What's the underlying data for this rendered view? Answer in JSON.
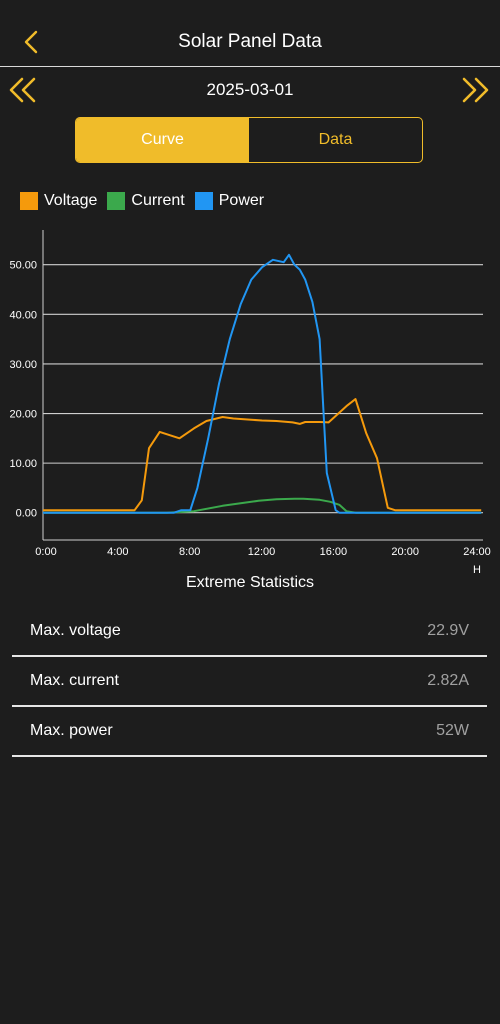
{
  "header": {
    "title": "Solar Panel Data"
  },
  "date_nav": {
    "date": "2025-03-01"
  },
  "tabs": [
    {
      "label": "Curve"
    },
    {
      "label": "Data"
    }
  ],
  "legend": [
    {
      "label": "Voltage",
      "color": "#f59a0c"
    },
    {
      "label": "Current",
      "color": "#3ba94c"
    },
    {
      "label": "Power",
      "color": "#2196f3"
    }
  ],
  "chart_data": {
    "type": "line",
    "x_unit": "H",
    "x_tick_labels": [
      "0:00",
      "4:00",
      "8:00",
      "12:00",
      "16:00",
      "20:00",
      "24:00"
    ],
    "y_tick_labels": [
      "0.00",
      "10.00",
      "20.00",
      "30.00",
      "40.00",
      "50.00"
    ],
    "xlim": [
      0,
      24.5
    ],
    "ylim": [
      -5.5,
      57
    ],
    "grid": true,
    "series": [
      {
        "name": "Voltage",
        "color": "#f59a0c",
        "x": [
          0,
          1.8,
          5.1,
          5.5,
          5.9,
          6.5,
          7.6,
          8.4,
          9.1,
          10.0,
          10.6,
          11.4,
          12.2,
          13.0,
          13.9,
          14.3,
          14.6,
          15.4,
          15.9,
          16.9,
          17.4,
          18.0,
          18.6,
          19.2,
          19.6,
          24.4
        ],
        "y": [
          0.5,
          0.5,
          0.5,
          2.5,
          13.0,
          16.3,
          15.0,
          17.0,
          18.5,
          19.3,
          19.0,
          18.8,
          18.6,
          18.5,
          18.2,
          17.9,
          18.3,
          18.3,
          18.2,
          21.5,
          22.9,
          16.0,
          11.0,
          1.0,
          0.5,
          0.5
        ]
      },
      {
        "name": "Current",
        "color": "#3ba94c",
        "x": [
          0,
          6.9,
          8.4,
          10.0,
          11.0,
          12.0,
          13.0,
          14.0,
          14.5,
          15.4,
          16.0,
          16.5,
          16.9,
          17.4,
          24.4
        ],
        "y": [
          0,
          0,
          0.3,
          1.4,
          1.9,
          2.4,
          2.7,
          2.82,
          2.8,
          2.6,
          2.2,
          1.6,
          0.3,
          0,
          0
        ]
      },
      {
        "name": "Power",
        "color": "#2196f3",
        "x": [
          0,
          7.3,
          7.7,
          8.2,
          8.6,
          9.2,
          9.8,
          10.4,
          11.0,
          11.6,
          12.2,
          12.8,
          13.4,
          13.7,
          14.0,
          14.3,
          14.6,
          15.0,
          15.4,
          15.8,
          16.3,
          16.5,
          16.9,
          17.4,
          24.4
        ],
        "y": [
          0,
          0,
          0.5,
          0.5,
          5.0,
          15.0,
          26.0,
          35.0,
          42.0,
          47.0,
          49.5,
          51.0,
          50.5,
          52.0,
          50.0,
          49.0,
          47.0,
          42.5,
          35.0,
          8.0,
          0.5,
          0,
          0,
          0,
          0
        ]
      }
    ]
  },
  "stats": {
    "title": "Extreme Statistics",
    "rows": [
      {
        "label": "Max. voltage",
        "value": "22.9V"
      },
      {
        "label": "Max. current",
        "value": "2.82A"
      },
      {
        "label": "Max. power",
        "value": "52W"
      }
    ]
  }
}
